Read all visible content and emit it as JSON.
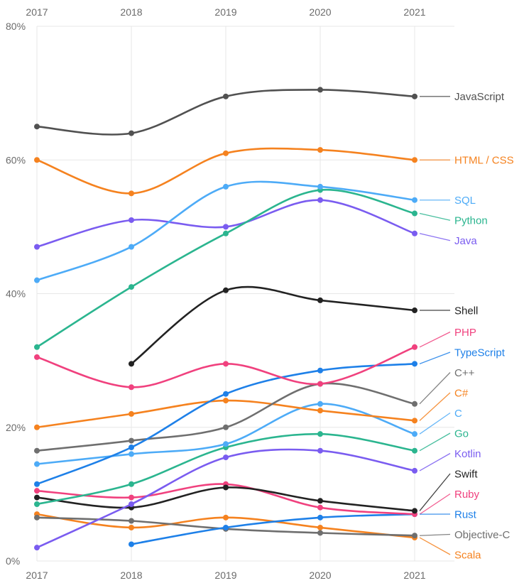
{
  "page": {
    "background": "#ffffff"
  },
  "chart_data": {
    "type": "line",
    "title": "",
    "x_tick_labels": [
      "2017",
      "2018",
      "2019",
      "2020",
      "2021"
    ],
    "x_axis_top": true,
    "x_axis_bottom": true,
    "y_ticks": [
      0,
      20,
      40,
      60,
      80
    ],
    "y_tick_labels": [
      "0%",
      "20%",
      "40%",
      "60%",
      "80%"
    ],
    "ylim": [
      0,
      80
    ],
    "grid": true,
    "legend_position": "right-edge-labels",
    "colors": {
      "grid": "#e7e7e7",
      "axis_text": "#6b6b6b",
      "background": "#ffffff"
    },
    "series": [
      {
        "name": "JavaScript",
        "color": "#515151",
        "values": [
          65,
          64,
          69.5,
          70.5,
          69.5
        ]
      },
      {
        "name": "HTML / CSS",
        "color": "#f5821f",
        "values": [
          60,
          55,
          61,
          61.5,
          60
        ]
      },
      {
        "name": "SQL",
        "color": "#4dabf7",
        "values": [
          42,
          47,
          56,
          56,
          54
        ]
      },
      {
        "name": "Python",
        "color": "#2bb58f",
        "values": [
          32,
          41,
          49,
          55.5,
          52
        ]
      },
      {
        "name": "Java",
        "color": "#7a5cf0",
        "values": [
          47,
          51,
          50,
          54,
          49
        ]
      },
      {
        "name": "Shell",
        "color": "#222222",
        "values": [
          null,
          29.5,
          40.5,
          39,
          37.5
        ]
      },
      {
        "name": "PHP",
        "color": "#f0417e",
        "values": [
          30.5,
          26,
          29.5,
          26.5,
          32
        ]
      },
      {
        "name": "TypeScript",
        "color": "#1e80e8",
        "values": [
          11.5,
          17,
          25,
          28.5,
          29.5
        ]
      },
      {
        "name": "C++",
        "color": "#6f6f6f",
        "values": [
          16.5,
          18,
          20,
          26.5,
          23.5
        ]
      },
      {
        "name": "C#",
        "color": "#f5821f",
        "values": [
          20,
          22,
          24,
          22.5,
          21
        ]
      },
      {
        "name": "C",
        "color": "#4dabf7",
        "values": [
          14.5,
          16,
          17.5,
          23.5,
          19
        ]
      },
      {
        "name": "Go",
        "color": "#2bb58f",
        "values": [
          8.5,
          11.5,
          17,
          19,
          16.5
        ]
      },
      {
        "name": "Kotlin",
        "color": "#7a5cf0",
        "values": [
          2,
          8.5,
          15.5,
          16.5,
          13.5
        ]
      },
      {
        "name": "Swift",
        "color": "#222222",
        "values": [
          9.5,
          8,
          11,
          9,
          7.5
        ]
      },
      {
        "name": "Ruby",
        "color": "#f0417e",
        "values": [
          10.5,
          9.5,
          11.5,
          8,
          7
        ]
      },
      {
        "name": "Rust",
        "color": "#1e80e8",
        "values": [
          null,
          2.5,
          5,
          6.5,
          7
        ]
      },
      {
        "name": "Objective-C",
        "color": "#6f6f6f",
        "values": [
          6.5,
          6,
          4.8,
          4.2,
          3.8
        ]
      },
      {
        "name": "Scala",
        "color": "#f5821f",
        "values": [
          7,
          5,
          6.5,
          5,
          3.5
        ]
      }
    ]
  }
}
